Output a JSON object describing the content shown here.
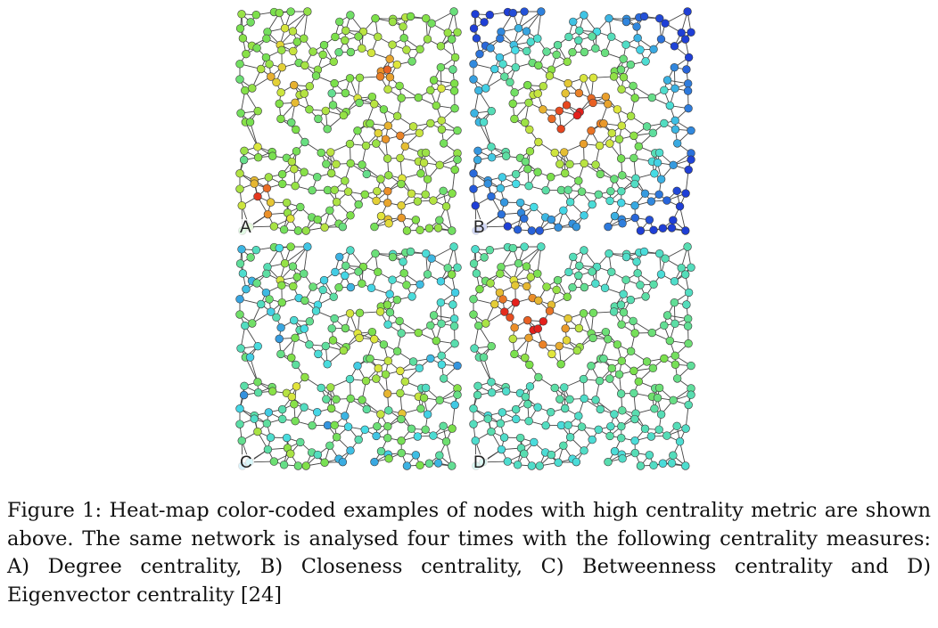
{
  "figure": {
    "panels": [
      {
        "label": "A",
        "measure": "degree"
      },
      {
        "label": "B",
        "measure": "closeness"
      },
      {
        "label": "C",
        "measure": "betweenness"
      },
      {
        "label": "D",
        "measure": "eigenvector"
      }
    ]
  },
  "caption": {
    "text": "Figure 1: Heat-map color-coded examples of nodes with high centrality metric are shown above. The same network is analysed four times with the following centrality measures: A) Degree centrality, B) Closeness centrality, C) Betweenness centrality and D) Eigenvector centrality [24]"
  },
  "colors": {
    "edge": "#444444",
    "node_stroke": "#3a3a3a",
    "heatmap_low": "#1f3fd6",
    "heatmap_mid": "#7be04a",
    "heatmap_high": "#e3201c"
  }
}
